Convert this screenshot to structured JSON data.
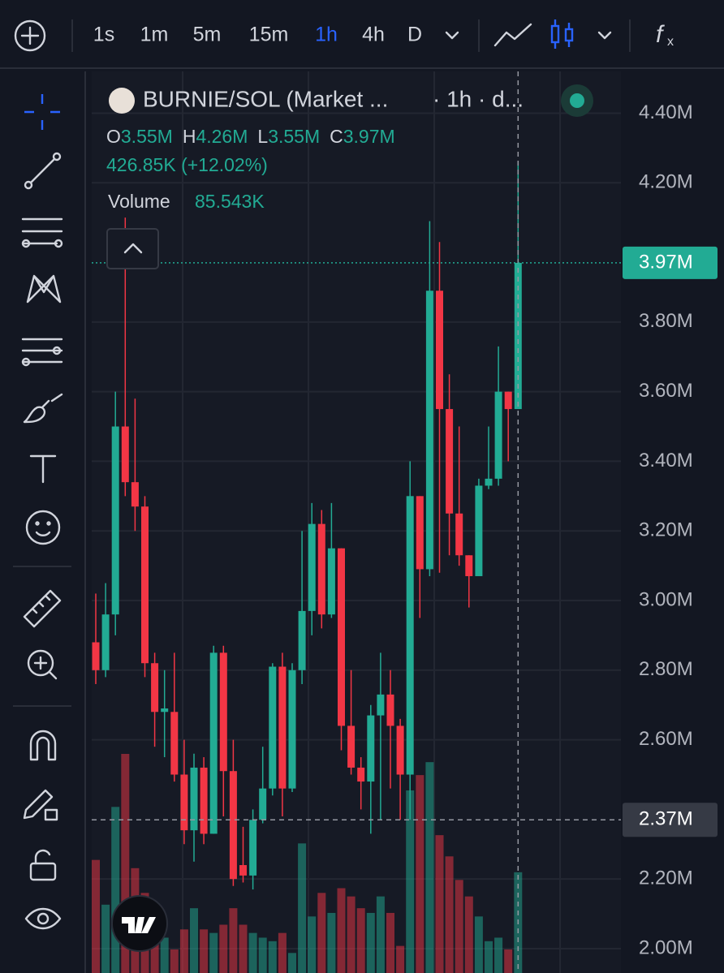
{
  "toolbar": {
    "intervals": [
      "1s",
      "1m",
      "5m",
      "15m",
      "1h",
      "4h",
      "D"
    ],
    "active": "1h"
  },
  "chart_data": {
    "type": "candlestick",
    "title": "BURNIE/SOL (Market ...",
    "subtitle": "· 1h · d...",
    "ohlc": [
      {
        "key": "O",
        "label": "3.55M"
      },
      {
        "key": "H",
        "label": "4.26M"
      },
      {
        "key": "L",
        "label": "3.55M"
      },
      {
        "key": "C",
        "label": "3.97M"
      }
    ],
    "change": "426.85K (+12.02%)",
    "up_color": "#22ab94",
    "down_color": "#f23645",
    "open": [
      2.88,
      2.8,
      2.96,
      3.5,
      3.34,
      3.27,
      2.82,
      2.68,
      2.68,
      2.5,
      2.34,
      2.52,
      2.33,
      2.85,
      2.51,
      2.24,
      2.21,
      2.37,
      2.46,
      2.81,
      2.46,
      2.8,
      2.97,
      3.22,
      2.96,
      3.15,
      2.64,
      2.52,
      2.48,
      2.67,
      2.73,
      2.64,
      2.5,
      3.3,
      3.09,
      3.89,
      3.55,
      3.25,
      3.13,
      3.07,
      3.33,
      3.35,
      3.6,
      3.55
    ],
    "high": [
      3.02,
      3.05,
      3.6,
      4.1,
      3.58,
      3.3,
      2.85,
      2.8,
      2.85,
      2.6,
      2.56,
      2.55,
      2.87,
      2.87,
      2.6,
      2.35,
      2.4,
      2.58,
      2.82,
      2.85,
      2.82,
      3.2,
      3.28,
      3.26,
      3.28,
      3.15,
      2.8,
      2.55,
      2.7,
      2.85,
      2.8,
      2.66,
      3.4,
      3.3,
      4.09,
      4.03,
      3.65,
      3.5,
      3.13,
      3.35,
      3.5,
      3.73,
      3.6,
      4.26
    ],
    "low": [
      2.76,
      2.78,
      2.9,
      3.3,
      3.2,
      2.78,
      2.58,
      2.55,
      2.48,
      2.3,
      2.25,
      2.3,
      2.33,
      2.38,
      2.18,
      2.19,
      2.17,
      2.36,
      2.44,
      2.38,
      2.45,
      2.76,
      2.9,
      2.92,
      2.95,
      2.57,
      2.5,
      2.4,
      2.33,
      2.37,
      2.46,
      2.37,
      2.37,
      2.95,
      3.07,
      3.08,
      3.13,
      3.1,
      2.98,
      3.07,
      3.32,
      3.33,
      3.4,
      3.55
    ],
    "close": [
      2.8,
      2.96,
      3.5,
      3.34,
      3.27,
      2.82,
      2.68,
      2.69,
      2.5,
      2.34,
      2.52,
      2.33,
      2.85,
      2.51,
      2.2,
      2.21,
      2.37,
      2.46,
      2.81,
      2.46,
      2.8,
      2.97,
      3.22,
      2.96,
      3.15,
      2.64,
      2.52,
      2.48,
      2.67,
      2.73,
      2.64,
      2.5,
      3.3,
      3.09,
      3.89,
      3.55,
      3.25,
      3.13,
      3.07,
      3.33,
      3.35,
      3.6,
      3.55,
      3.97
    ],
    "volume": {
      "name": "Volume",
      "last_label": "85.543K",
      "values": [
        96,
        58,
        141,
        186,
        89,
        68,
        41,
        30,
        20,
        37,
        55,
        37,
        34,
        41,
        55,
        41,
        34,
        30,
        27,
        34,
        17,
        110,
        48,
        68,
        51,
        72,
        65,
        55,
        51,
        65,
        51,
        23,
        155,
        168,
        179,
        117,
        99,
        79,
        65,
        48,
        27,
        30,
        20,
        85.543
      ]
    },
    "ylim": [
      1.93,
      4.52
    ],
    "yticks": [
      {
        "value": 4.4,
        "label": "4.40M"
      },
      {
        "value": 4.2,
        "label": "4.20M"
      },
      {
        "value": 3.8,
        "label": "3.80M"
      },
      {
        "value": 3.6,
        "label": "3.60M"
      },
      {
        "value": 3.4,
        "label": "3.40M"
      },
      {
        "value": 3.2,
        "label": "3.20M"
      },
      {
        "value": 3.0,
        "label": "3.00M"
      },
      {
        "value": 2.8,
        "label": "2.80M"
      },
      {
        "value": 2.6,
        "label": "2.60M"
      },
      {
        "value": 2.2,
        "label": "2.20M"
      },
      {
        "value": 2.0,
        "label": "2.00M"
      }
    ],
    "last_price": {
      "value": 3.97,
      "label": "3.97M"
    },
    "crosshair": {
      "value": 2.37,
      "label": "2.37M"
    },
    "grid": true
  }
}
